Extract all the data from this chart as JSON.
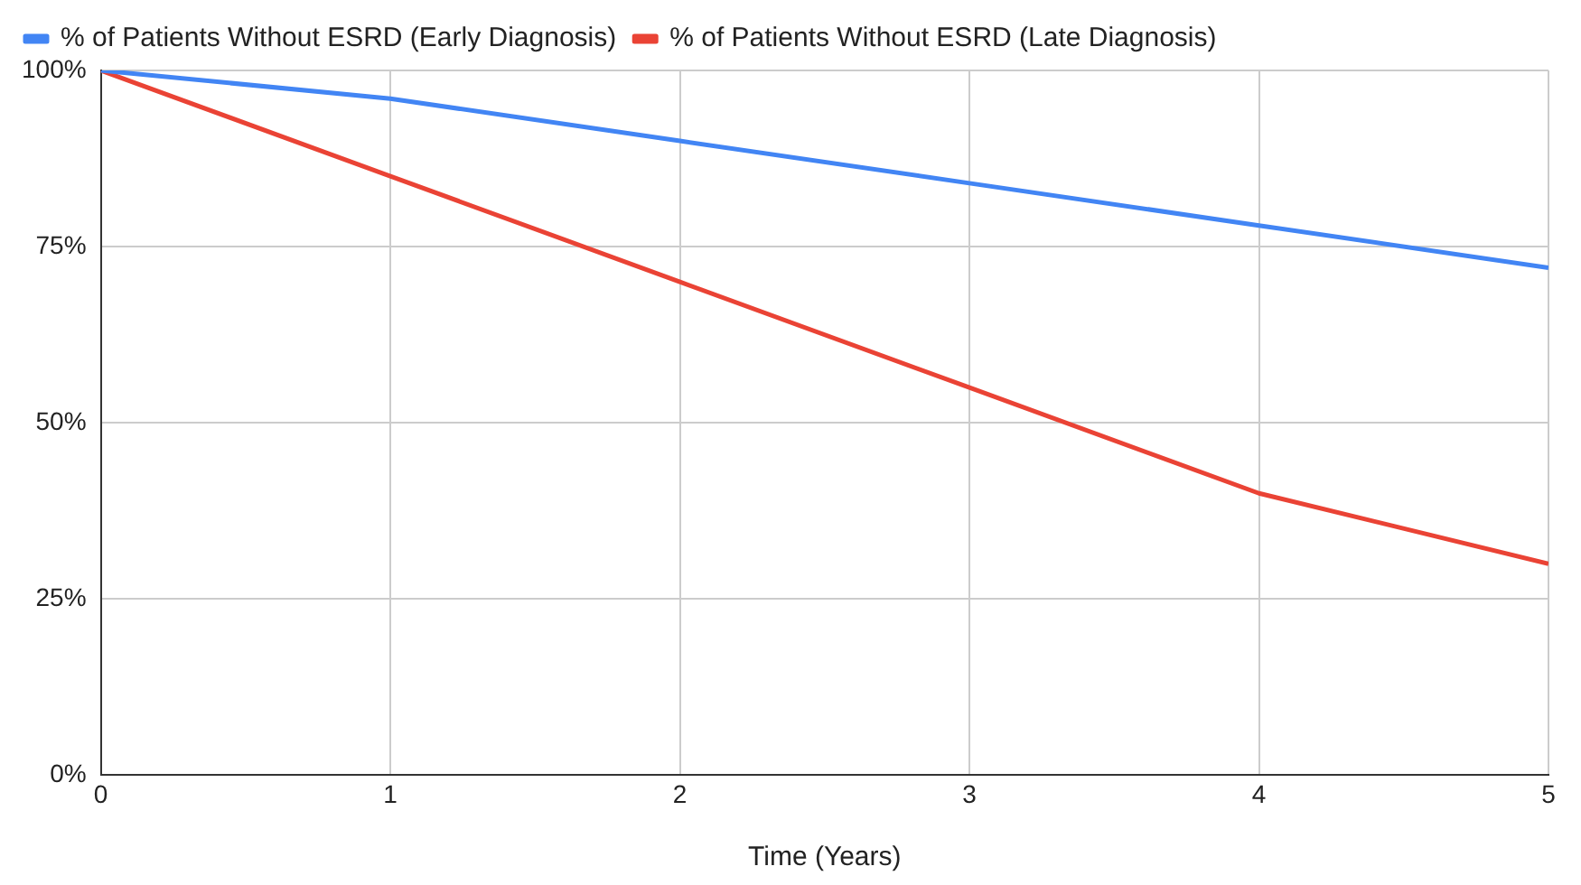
{
  "chart_data": {
    "type": "line",
    "xlabel": "Time (Years)",
    "x": [
      0,
      1,
      2,
      3,
      4,
      5
    ],
    "series": [
      {
        "name": "% of Patients Without ESRD (Early Diagnosis)",
        "color": "#4285f4",
        "values": [
          100,
          96,
          90,
          84,
          78,
          72
        ]
      },
      {
        "name": "% of Patients Without ESRD (Late Diagnosis)",
        "color": "#ea4335",
        "values": [
          100,
          85,
          70,
          55,
          40,
          30
        ]
      }
    ],
    "xlim": [
      0,
      5
    ],
    "xticks": [
      0,
      1,
      2,
      3,
      4,
      5
    ],
    "ylim": [
      0,
      100
    ],
    "yticks": [
      {
        "value": 0,
        "label": "0%"
      },
      {
        "value": 25,
        "label": "25%"
      },
      {
        "value": 50,
        "label": "50%"
      },
      {
        "value": 75,
        "label": "75%"
      },
      {
        "value": 100,
        "label": "100%"
      }
    ],
    "grid": true,
    "legend": "top left",
    "marker": "none",
    "line_style": "solid"
  }
}
